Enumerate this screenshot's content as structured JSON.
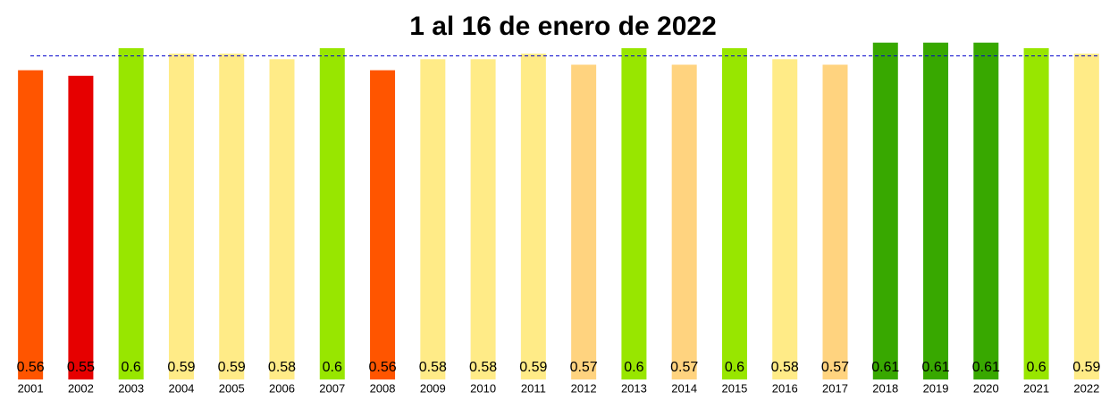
{
  "chart_data": {
    "type": "bar",
    "title": "1 al 16 de enero de 2022",
    "categories": [
      "2001",
      "2002",
      "2003",
      "2004",
      "2005",
      "2006",
      "2007",
      "2008",
      "2009",
      "2010",
      "2011",
      "2012",
      "2013",
      "2014",
      "2015",
      "2016",
      "2017",
      "2018",
      "2019",
      "2020",
      "2021",
      "2022"
    ],
    "values": [
      0.56,
      0.55,
      0.6,
      0.59,
      0.59,
      0.58,
      0.6,
      0.56,
      0.58,
      0.58,
      0.59,
      0.57,
      0.6,
      0.57,
      0.6,
      0.58,
      0.57,
      0.61,
      0.61,
      0.61,
      0.6,
      0.59
    ],
    "colors": [
      "#ff5500",
      "#e60000",
      "#98e600",
      "#ffeb87",
      "#ffeb87",
      "#ffeb87",
      "#98e600",
      "#ff5500",
      "#ffeb87",
      "#ffeb87",
      "#ffeb87",
      "#ffd37f",
      "#98e600",
      "#ffd37f",
      "#98e600",
      "#ffeb87",
      "#ffd37f",
      "#38a800",
      "#38a800",
      "#38a800",
      "#98e600",
      "#ffeb87"
    ],
    "ylim": [
      0,
      0.65
    ],
    "reference_line": {
      "value": 0.586,
      "color": "#0000cc"
    }
  }
}
